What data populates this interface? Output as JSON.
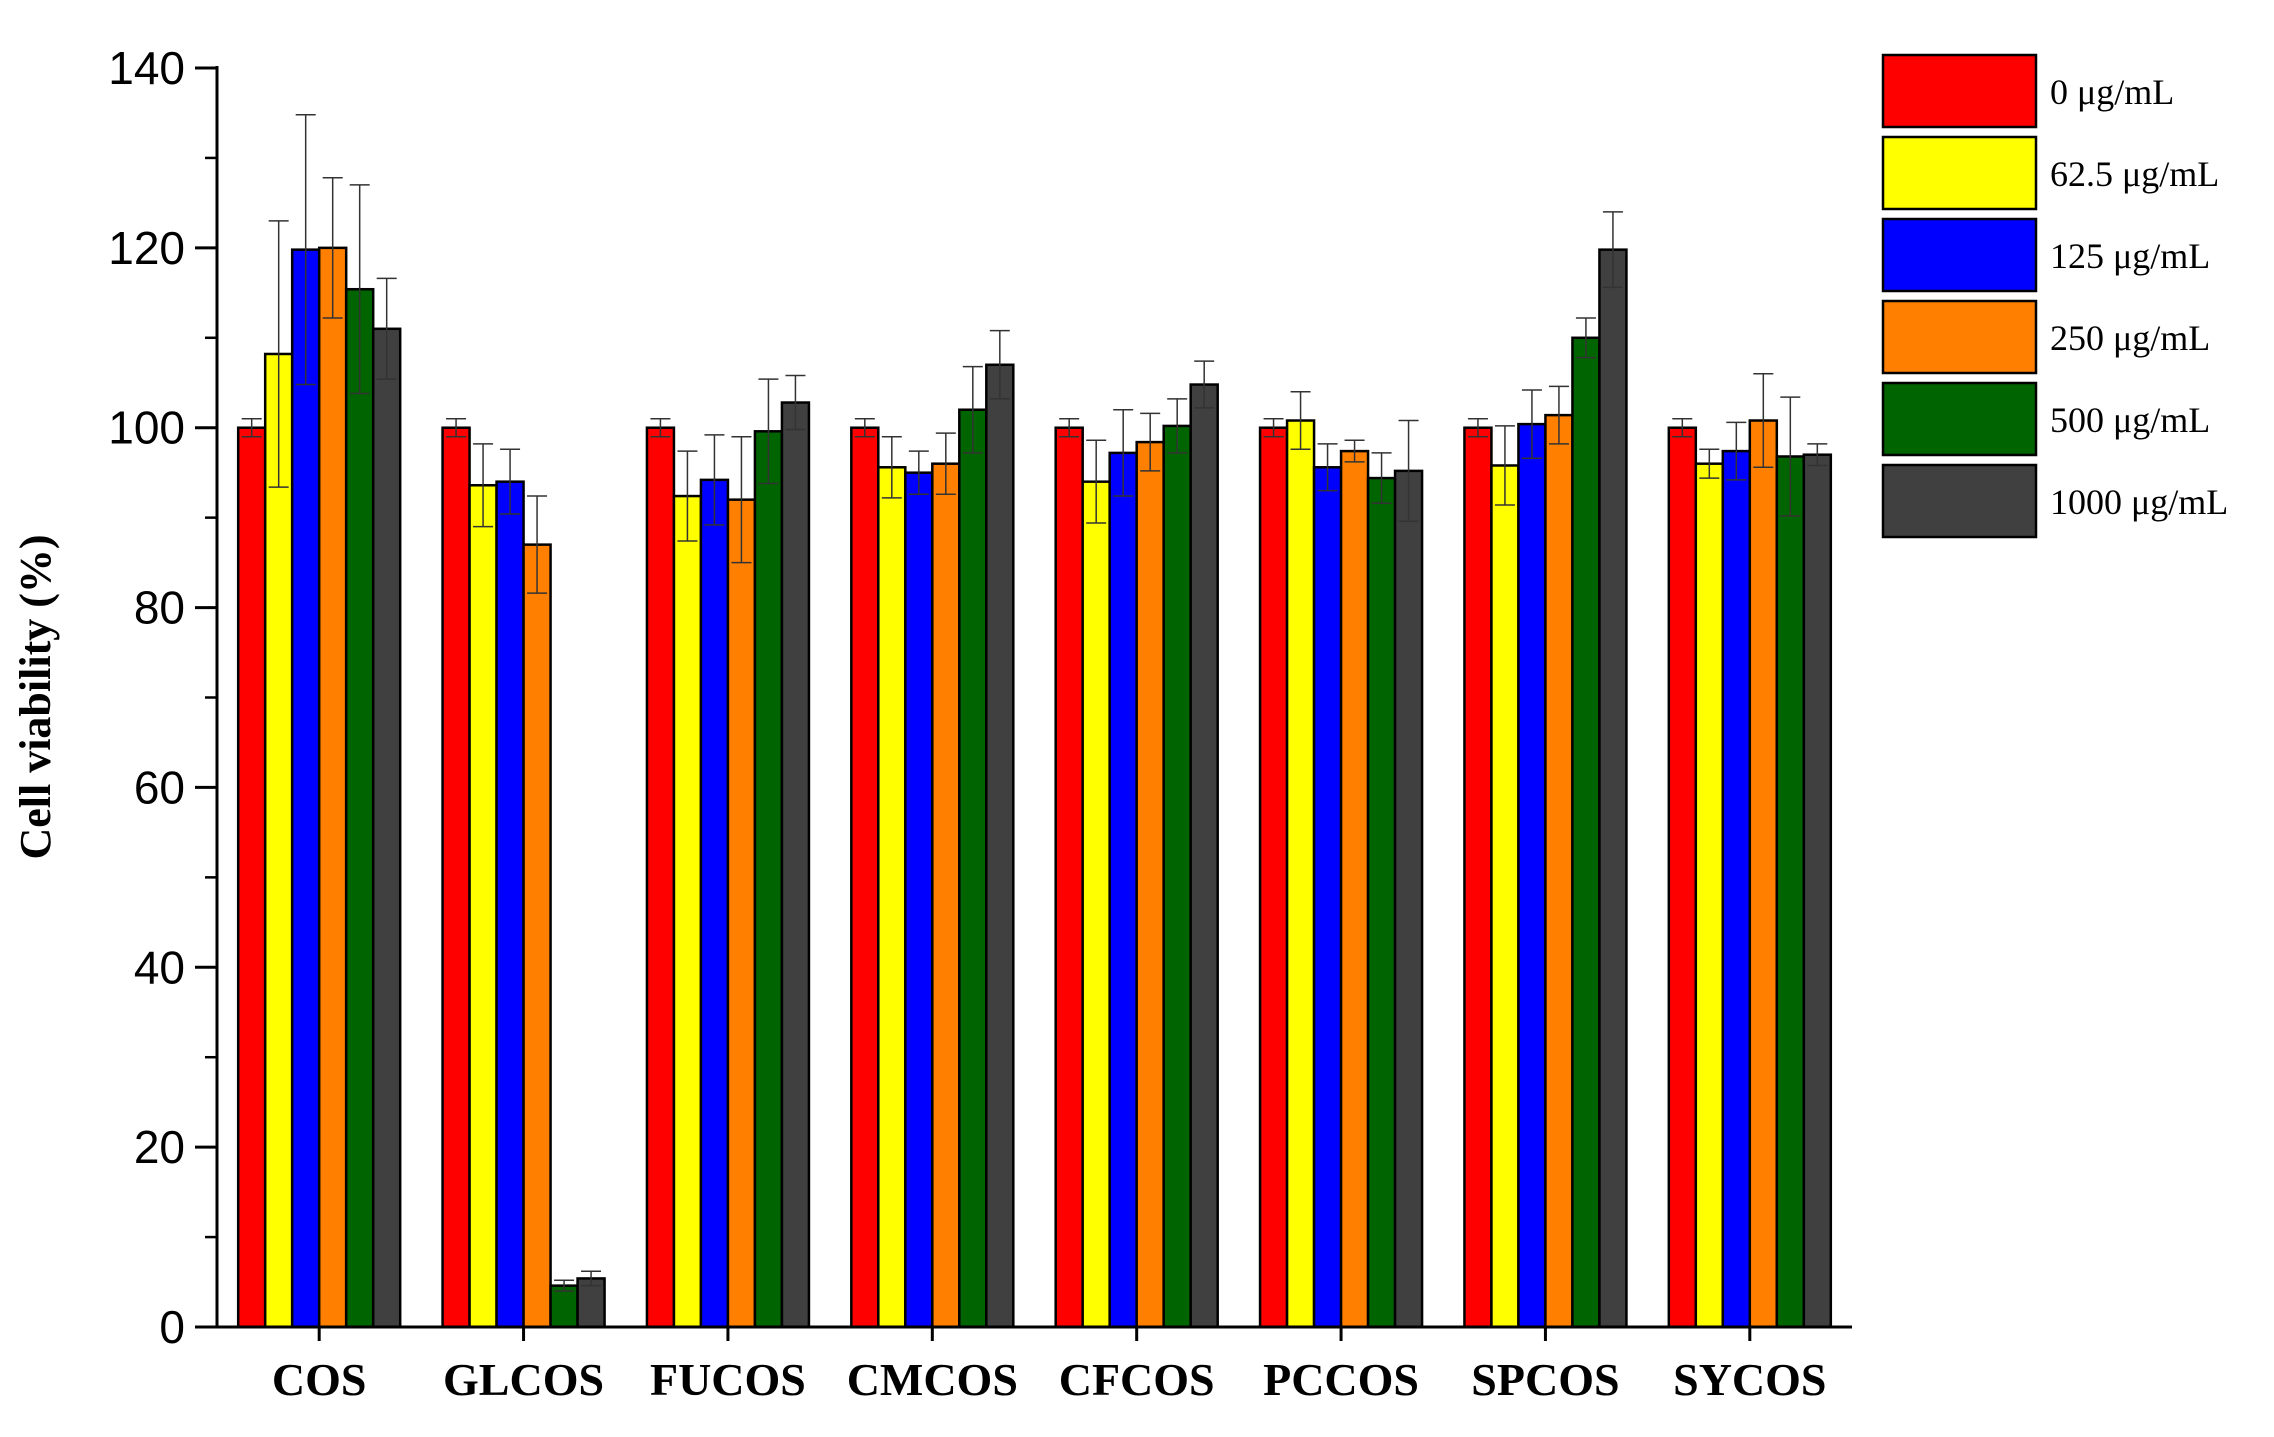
{
  "chart_data": {
    "type": "bar",
    "title": "",
    "xlabel": "",
    "ylabel": "Cell viability (%)",
    "ylim": [
      0,
      140
    ],
    "yticks": [
      "0",
      "20",
      "40",
      "60",
      "80",
      "100",
      "120",
      "140"
    ],
    "grid": false,
    "legend_position": "top-right",
    "categories": [
      "COS",
      "GLCOS",
      "FUCOS",
      "CMCOS",
      "CFCOS",
      "PCCOS",
      "SPCOS",
      "SYCOS"
    ],
    "series": [
      {
        "name": "0 μg/mL",
        "color": "#ff0000",
        "values": [
          100,
          100,
          100,
          100,
          100,
          100,
          100,
          100
        ],
        "errors": [
          1,
          1,
          1,
          1,
          1,
          1,
          1,
          1
        ]
      },
      {
        "name": "62.5 μg/mL",
        "color": "#ffff00",
        "values": [
          108.2,
          93.6,
          92.4,
          95.6,
          94.0,
          100.8,
          95.8,
          96.0
        ],
        "errors": [
          14.8,
          4.6,
          5.0,
          3.4,
          4.6,
          3.2,
          4.4,
          1.6
        ]
      },
      {
        "name": "125 μg/mL",
        "color": "#0000ff",
        "values": [
          119.8,
          94.0,
          94.2,
          95.0,
          97.2,
          95.6,
          100.4,
          97.4
        ],
        "errors": [
          15.0,
          3.6,
          5.0,
          2.4,
          4.8,
          2.6,
          3.8,
          3.2
        ]
      },
      {
        "name": "250 μg/mL",
        "color": "#ff8000",
        "values": [
          120.0,
          87.0,
          92.0,
          96.0,
          98.4,
          97.4,
          101.4,
          100.8
        ],
        "errors": [
          7.8,
          5.4,
          7.0,
          3.4,
          3.2,
          1.2,
          3.2,
          5.2
        ]
      },
      {
        "name": "500 μg/mL",
        "color": "#006400",
        "values": [
          115.4,
          4.6,
          99.6,
          102.0,
          100.2,
          94.4,
          110.0,
          96.8
        ],
        "errors": [
          11.6,
          0.6,
          5.8,
          4.8,
          3.0,
          2.8,
          2.2,
          6.6
        ]
      },
      {
        "name": "1000 μg/mL",
        "color": "#404040",
        "values": [
          111.0,
          5.4,
          102.8,
          107.0,
          104.8,
          95.2,
          119.8,
          97.0
        ],
        "errors": [
          5.6,
          0.8,
          3.0,
          3.8,
          2.6,
          5.6,
          4.2,
          1.2
        ]
      }
    ]
  }
}
